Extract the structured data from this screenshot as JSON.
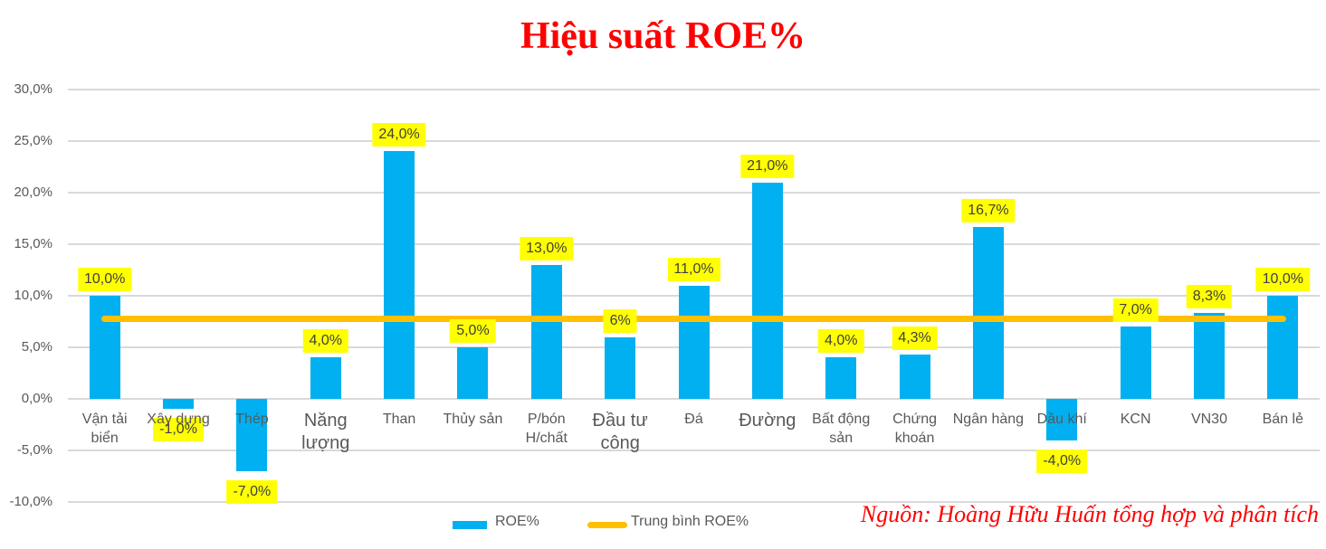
{
  "title": "Hiệu suất ROE%",
  "source_note": "Nguồn: Hoàng Hữu Huấn tổng hợp và phân tích",
  "legend": {
    "series_label": "ROE%",
    "average_label": "Trung bình ROE%"
  },
  "colors": {
    "bar": "#00B0F0",
    "average_line": "#FFC000",
    "label_bg": "#FFFF00",
    "label_text": "#404040",
    "axis_text": "#595959",
    "gridline": "#D9D9D9",
    "title_red": "#FF0000"
  },
  "chart_data": {
    "type": "bar",
    "title": "Hiệu suất ROE%",
    "categories": [
      "Vận tải biển",
      "Xây dựng",
      "Thép",
      "Năng lượng",
      "Than",
      "Thủy sản",
      "P/bón H/chất",
      "Đầu tư công",
      "Đá",
      "Đường",
      "Bất động sản",
      "Chứng khoán",
      "Ngân hàng",
      "Dầu khí",
      "KCN",
      "VN30",
      "Bán lẻ"
    ],
    "values": [
      10.0,
      -1.0,
      -7.0,
      4.0,
      24.0,
      5.0,
      13.0,
      6.0,
      11.0,
      21.0,
      4.0,
      4.3,
      16.7,
      -4.0,
      7.0,
      8.3,
      10.0
    ],
    "value_labels": [
      "10,0%",
      "-1,0%",
      "-7,0%",
      "4,0%",
      "24,0%",
      "5,0%",
      "13,0%",
      "6%",
      "11,0%",
      "21,0%",
      "4,0%",
      "4,3%",
      "16,7%",
      "-4,0%",
      "7,0%",
      "8,3%",
      "10,0%"
    ],
    "large_category_indices": [
      3,
      7,
      9
    ],
    "series_name": "ROE%",
    "average_line": {
      "name": "Trung bình ROE%",
      "value": 7.8
    },
    "y_ticks": [
      "30,0%",
      "25,0%",
      "20,0%",
      "15,0%",
      "10,0%",
      "5,0%",
      "0,0%",
      "-5,0%",
      "-10,0%"
    ],
    "y_tick_values": [
      30,
      25,
      20,
      15,
      10,
      5,
      0,
      -5,
      -10
    ],
    "ylim": [
      -10,
      30
    ],
    "grid": true,
    "legend_position": "bottom"
  }
}
